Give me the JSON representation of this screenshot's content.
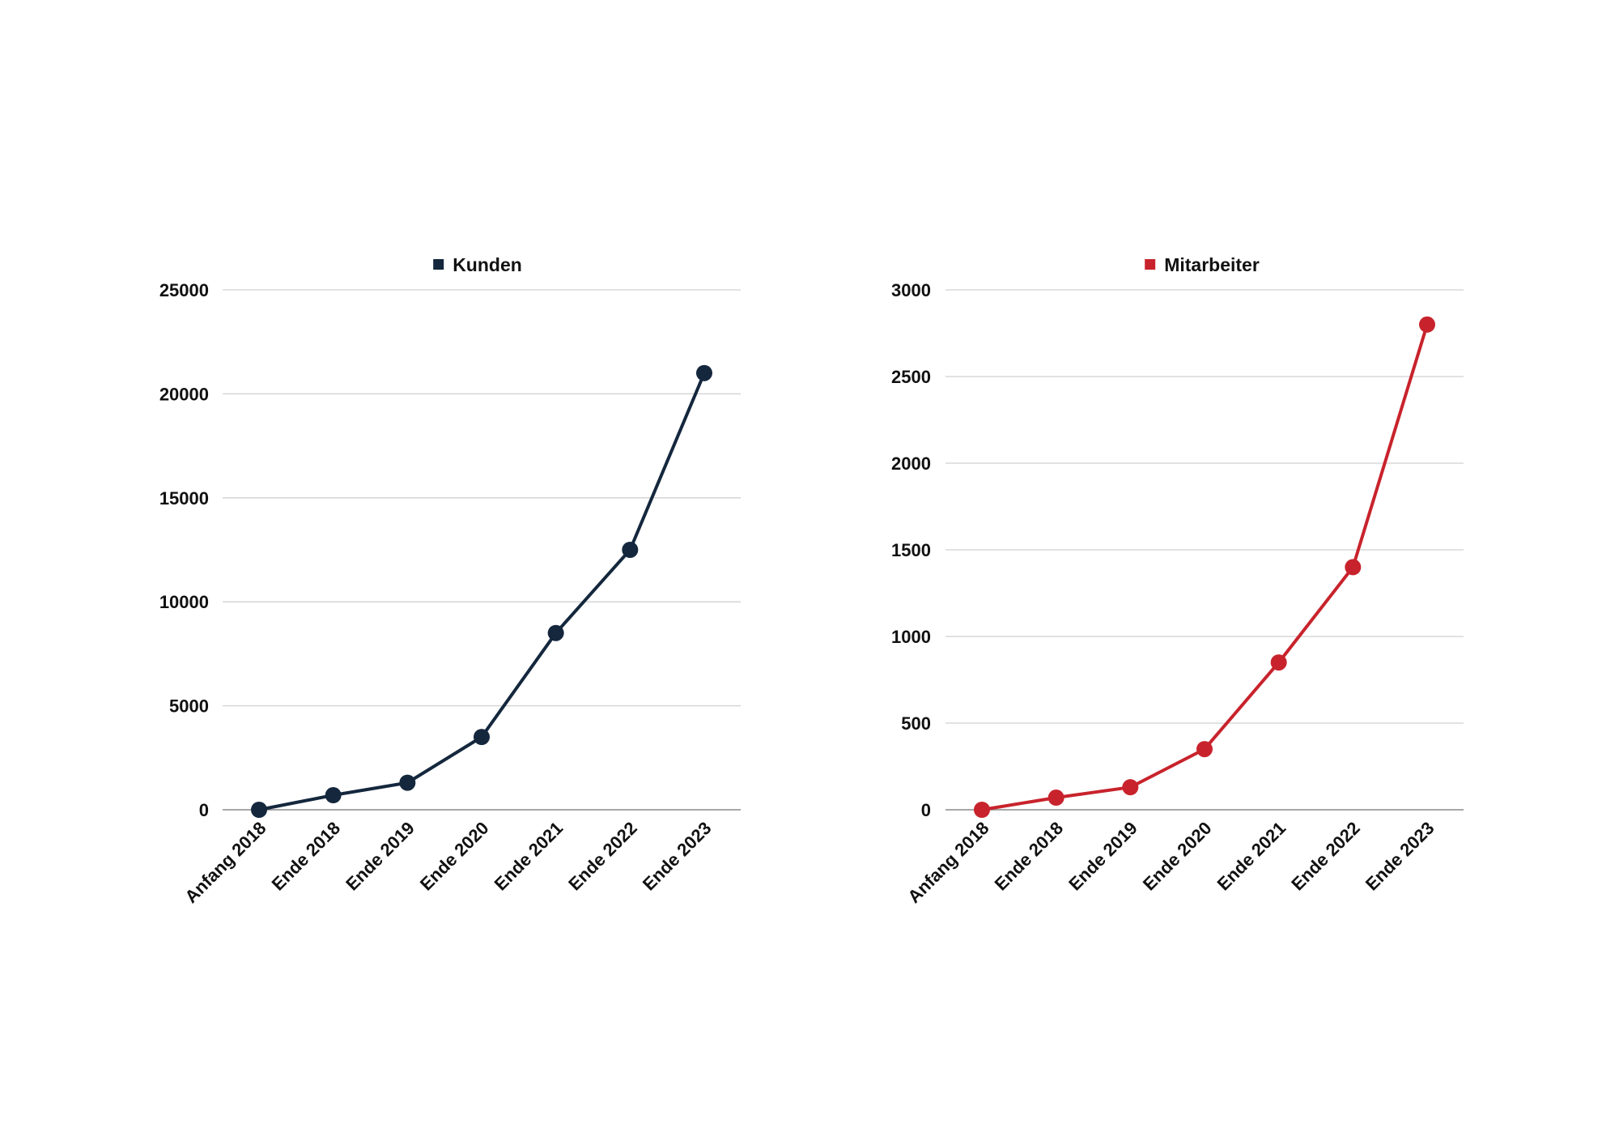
{
  "chart_data": [
    {
      "type": "line",
      "categories": [
        "Anfang 2018",
        "Ende 2018",
        "Ende 2019",
        "Ende 2020",
        "Ende 2021",
        "Ende 2022",
        "Ende 2023"
      ],
      "series": [
        {
          "name": "Kunden",
          "color": "#14273d",
          "values": [
            0,
            700,
            1300,
            3500,
            8500,
            12500,
            21000
          ]
        }
      ],
      "ylim": [
        0,
        25000
      ],
      "yticks": [
        0,
        5000,
        10000,
        15000,
        20000,
        25000
      ],
      "grid": true,
      "legend_position": "top-center"
    },
    {
      "type": "line",
      "categories": [
        "Anfang 2018",
        "Ende 2018",
        "Ende 2019",
        "Ende 2020",
        "Ende 2021",
        "Ende 2022",
        "Ende 2023"
      ],
      "series": [
        {
          "name": "Mitarbeiter",
          "color": "#c8232c",
          "values": [
            0,
            70,
            130,
            350,
            850,
            1400,
            2800
          ]
        }
      ],
      "ylim": [
        0,
        3000
      ],
      "yticks": [
        0,
        500,
        1000,
        1500,
        2000,
        2500,
        3000
      ],
      "grid": true,
      "legend_position": "top-center"
    }
  ]
}
